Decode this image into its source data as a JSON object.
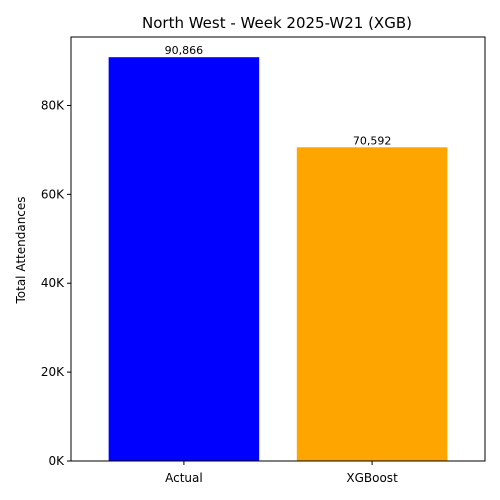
{
  "chart_data": {
    "type": "bar",
    "title": "North West - Week 2025-W21 (XGB)",
    "xlabel": "",
    "ylabel": "Total Attendances",
    "categories": [
      "Actual",
      "XGBoost"
    ],
    "values": [
      90866,
      70592
    ],
    "data_labels": [
      "90,866",
      "70,592"
    ],
    "colors": [
      "#0000ff",
      "#ffa500"
    ],
    "ylim": [
      0,
      95409
    ],
    "y_ticks": [
      0,
      20000,
      40000,
      60000,
      80000
    ],
    "y_tick_labels": [
      "0K",
      "20K",
      "40K",
      "60K",
      "80K"
    ],
    "grid": false,
    "legend": "none"
  }
}
